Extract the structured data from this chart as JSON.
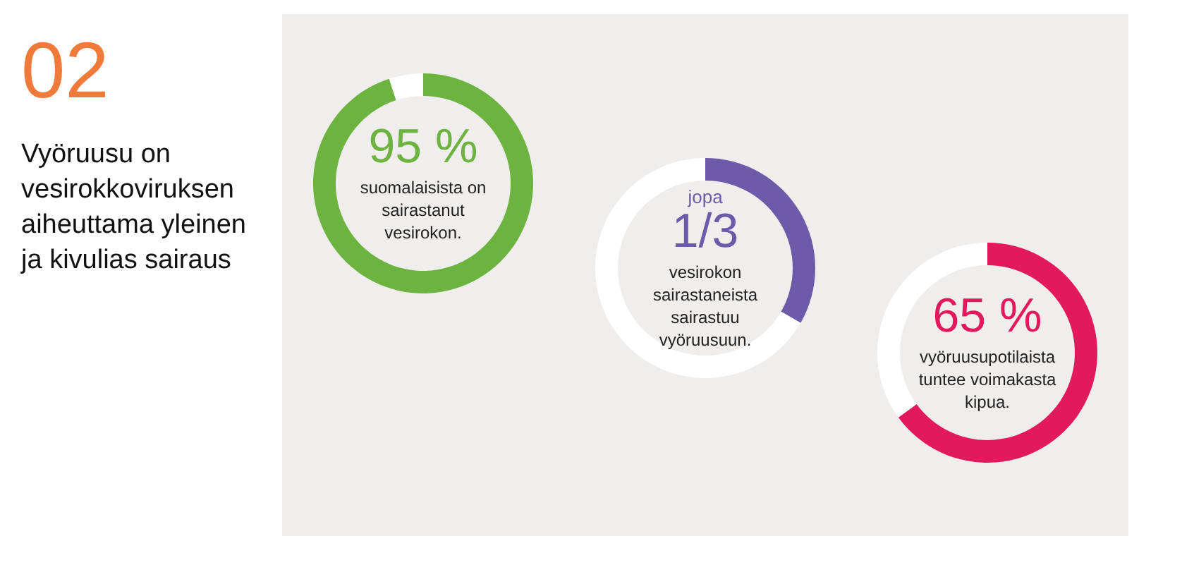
{
  "chart_data": [
    {
      "type": "other",
      "title": "02",
      "subtitle": "Vyöruusu on vesirokkoviruksen aiheuttama yleinen ja kivulias sairaus"
    },
    {
      "type": "donut",
      "categories": [
        null,
        null
      ],
      "values": [
        95,
        5
      ],
      "colors": [
        "#6db33f",
        "#ffffff"
      ],
      "value_labels": [
        "95 %",
        null
      ],
      "annotations": [
        "suomalaisista on sairastanut vesirokon."
      ]
    },
    {
      "type": "donut",
      "categories": [
        null,
        null
      ],
      "values": [
        33.3,
        66.7
      ],
      "colors": [
        "#6b5ba8",
        "#ffffff"
      ],
      "annotations": [
        "jopa",
        "1/3",
        "vesirokon sairastaneista sairastuu vyöruusuun."
      ]
    },
    {
      "type": "donut",
      "categories": [
        null,
        null
      ],
      "values": [
        65,
        35
      ],
      "colors": [
        "#e3195e",
        "#ffffff"
      ],
      "value_labels": [
        "65 %",
        null
      ],
      "annotations": [
        "vyöruusupotilaista tuntee voimakasta kipua."
      ]
    }
  ]
}
